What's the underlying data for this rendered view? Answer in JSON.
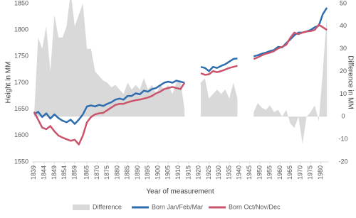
{
  "chart_data": {
    "type": "line",
    "x": [
      1839,
      1841,
      1843,
      1845,
      1847,
      1849,
      1851,
      1853,
      1855,
      1857,
      1859,
      1861,
      1863,
      1865,
      1867,
      1869,
      1871,
      1873,
      1875,
      1877,
      1879,
      1881,
      1883,
      1885,
      1887,
      1889,
      1891,
      1893,
      1895,
      1897,
      1899,
      1901,
      1903,
      1905,
      1907,
      1909,
      1911,
      1913,
      1915,
      1917,
      1919,
      1921,
      1923,
      1925,
      1927,
      1929,
      1931,
      1933,
      1935,
      1937,
      1939,
      1941,
      1943,
      1945,
      1947,
      1949,
      1951,
      1953,
      1955,
      1957,
      1959,
      1961,
      1963,
      1965,
      1967,
      1969,
      1971,
      1973,
      1975,
      1977,
      1979,
      1981,
      1983
    ],
    "xlabel": "Year of measurement",
    "ylabel": "Height in MM",
    "y2label": "Difference in MM",
    "xlim": [
      1838,
      1984
    ],
    "xticks": [
      1839,
      1844,
      1849,
      1854,
      1859,
      1865,
      1870,
      1875,
      1880,
      1885,
      1890,
      1895,
      1900,
      1905,
      1910,
      1915,
      1920,
      1925,
      1930,
      1935,
      1940,
      1945,
      1950,
      1955,
      1960,
      1965,
      1970,
      1975,
      1980
    ],
    "ylim": [
      1550,
      1850
    ],
    "yticks": [
      1550,
      1600,
      1650,
      1700,
      1750,
      1800,
      1850
    ],
    "y2lim": [
      -20,
      50
    ],
    "y2ticks": [
      -20,
      -10,
      0,
      10,
      20,
      30,
      40,
      50
    ],
    "grid": false,
    "legend": "bottom",
    "series": [
      {
        "name": "Difference",
        "type": "area",
        "axis": "y2",
        "color": "#d9d9d9",
        "values": [
          0,
          35,
          30,
          40,
          20,
          45,
          35,
          35,
          40,
          55,
          40,
          45,
          50,
          30,
          30,
          20,
          18,
          16,
          15,
          13,
          14,
          12,
          10,
          15,
          12,
          14,
          12,
          17,
          12,
          14,
          10,
          14,
          12,
          14,
          10,
          15,
          16,
          3,
          null,
          null,
          null,
          15,
          17,
          8,
          10,
          12,
          10,
          12,
          8,
          15,
          8,
          null,
          null,
          null,
          2,
          6,
          4,
          3,
          5,
          2,
          3,
          0,
          3,
          -3,
          -5,
          0,
          -12,
          0,
          2,
          5,
          -2,
          20,
          45
        ]
      },
      {
        "name": "Born Jan/Feb/Mar",
        "type": "line",
        "color": "#2e6eb0",
        "values": [
          1640,
          1645,
          1635,
          1642,
          1632,
          1640,
          1633,
          1628,
          1625,
          1630,
          1622,
          1630,
          1640,
          1655,
          1657,
          1655,
          1658,
          1656,
          1660,
          1663,
          1668,
          1670,
          1668,
          1675,
          1675,
          1680,
          1678,
          1685,
          1683,
          1688,
          1690,
          1695,
          1700,
          1702,
          1700,
          1704,
          1702,
          1700,
          null,
          null,
          null,
          1730,
          1728,
          1722,
          1730,
          1728,
          1732,
          1735,
          1740,
          1745,
          1746,
          null,
          null,
          null,
          1750,
          1752,
          1755,
          1757,
          1760,
          1762,
          1768,
          1767,
          1775,
          1782,
          1790,
          1795,
          1795,
          1797,
          1800,
          1805,
          1808,
          1830,
          1842
        ]
      },
      {
        "name": "Born Oct/Nov/Dec",
        "type": "line",
        "color": "#c9546b",
        "values": [
          1645,
          1630,
          1615,
          1612,
          1618,
          1608,
          1600,
          1596,
          1593,
          1590,
          1592,
          1583,
          1600,
          1625,
          1635,
          1640,
          1642,
          1643,
          1648,
          1653,
          1658,
          1660,
          1660,
          1663,
          1665,
          1667,
          1668,
          1670,
          1672,
          1675,
          1680,
          1683,
          1688,
          1690,
          1692,
          1690,
          1688,
          1700,
          null,
          null,
          null,
          1718,
          1715,
          1716,
          1722,
          1720,
          1722,
          1725,
          1728,
          1730,
          1732,
          null,
          null,
          null,
          1745,
          1748,
          1752,
          1755,
          1757,
          1760,
          1765,
          1768,
          1772,
          1785,
          1795,
          1792,
          1795,
          1797,
          1798,
          1800,
          1810,
          1805,
          1800
        ]
      }
    ]
  }
}
